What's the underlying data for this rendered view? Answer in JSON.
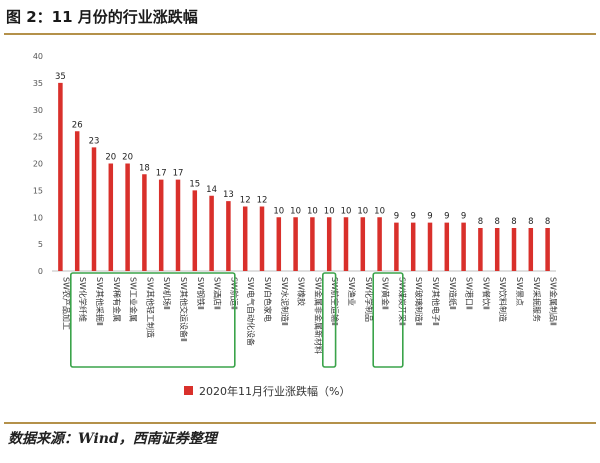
{
  "header": {
    "title": "图 2：11 月份的行业涨跌幅"
  },
  "source": "数据来源：Wind，西南证券整理",
  "chart_data": {
    "type": "bar",
    "title": "",
    "xlabel": "",
    "ylabel": "",
    "ylim": [
      0,
      40
    ],
    "yticks": [
      0,
      5,
      10,
      15,
      20,
      25,
      30,
      35,
      40
    ],
    "grid": false,
    "legend_position": "bottom",
    "bar_color": "#d9302b",
    "highlight_color": "#3aa34a",
    "categories": [
      "SW农产品加工",
      "SW化学纤维",
      "SW其他采掘Ⅱ",
      "SW稀有金属",
      "SW工业金属",
      "SW其他轻工制造",
      "SW机场Ⅱ",
      "SW其他交运设备Ⅱ",
      "SW钢铁Ⅱ",
      "SW酒店Ⅱ",
      "SW航运Ⅱ",
      "SW电气自动化设备",
      "SW白色家电",
      "SW水泥制造Ⅱ",
      "SW橡胶",
      "SW金属非金属新材料",
      "SW航空运输Ⅱ",
      "SW渔业",
      "SW化学制品",
      "SW黄金Ⅱ",
      "SW煤炭开采Ⅱ",
      "SW玻璃制造Ⅱ",
      "SW其他电子Ⅱ",
      "SW造纸Ⅱ",
      "SW港口Ⅱ",
      "SW餐饮Ⅱ",
      "SW饮料制造",
      "SW景点",
      "SW采掘服务",
      "SW金属制品Ⅱ"
    ],
    "series": [
      {
        "name": "2020年11月行业涨跌幅（%）",
        "values": [
          35,
          26,
          23,
          20,
          20,
          18,
          17,
          17,
          15,
          14,
          13,
          12,
          12,
          10,
          10,
          10,
          10,
          10,
          10,
          10,
          9,
          9,
          9,
          9,
          9,
          8,
          8,
          8,
          8,
          8
        ]
      }
    ],
    "highlight_groups": [
      [
        1,
        10
      ],
      [
        16,
        16
      ],
      [
        19,
        20
      ]
    ]
  }
}
